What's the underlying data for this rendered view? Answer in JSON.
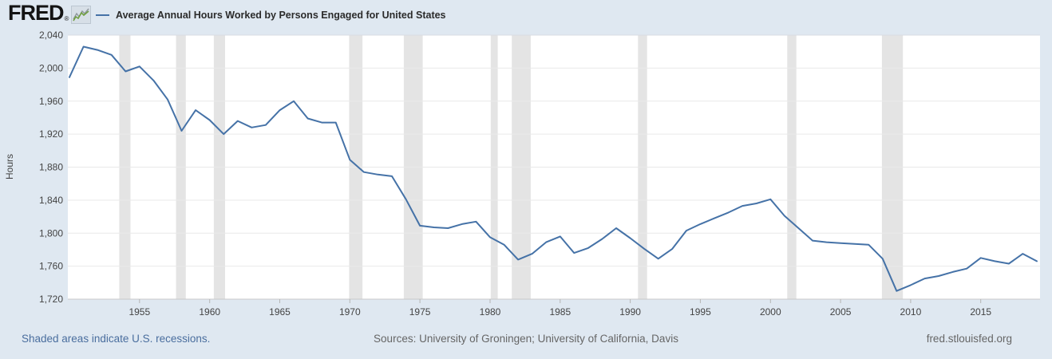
{
  "header": {
    "brand": "FRED",
    "registered_mark": "®",
    "legend_dash": "—",
    "legend_label": "Average Annual Hours Worked by Persons Engaged for United States"
  },
  "colors": {
    "page_background": "#dfe8f1",
    "plot_background": "#ffffff",
    "line_color": "#4572a7",
    "recession_band_color": "#e4e4e4",
    "gridline_color": "#e9e9e9",
    "axis_line_color": "#c9c9c9",
    "tick_label_color": "#434343",
    "link_color": "#4a6e9e",
    "logo_green": "#6f9e3f"
  },
  "chart_data": {
    "type": "line",
    "title": "Average Annual Hours Worked by Persons Engaged for United States",
    "ylabel": "Hours",
    "xlabel": "",
    "grid": "horizontal",
    "legend_position": "top",
    "ylim": [
      1720,
      2040
    ],
    "xlim": [
      1950,
      2019
    ],
    "x": [
      1950,
      1951,
      1952,
      1953,
      1954,
      1955,
      1956,
      1957,
      1958,
      1959,
      1960,
      1961,
      1962,
      1963,
      1964,
      1965,
      1966,
      1967,
      1968,
      1969,
      1970,
      1971,
      1972,
      1973,
      1974,
      1975,
      1976,
      1977,
      1978,
      1979,
      1980,
      1981,
      1982,
      1983,
      1984,
      1985,
      1986,
      1987,
      1988,
      1989,
      1990,
      1991,
      1992,
      1993,
      1994,
      1995,
      1996,
      1997,
      1998,
      1999,
      2000,
      2001,
      2002,
      2003,
      2004,
      2005,
      2006,
      2007,
      2008,
      2009,
      2010,
      2011,
      2012,
      2013,
      2014,
      2015,
      2016,
      2017,
      2018,
      2019
    ],
    "values": [
      1989,
      2026,
      2022,
      2016,
      1996,
      2002,
      1985,
      1962,
      1924,
      1949,
      1937,
      1920,
      1936,
      1928,
      1931,
      1949,
      1960,
      1939,
      1934,
      1934,
      1889,
      1874,
      1871,
      1869,
      1841,
      1809,
      1807,
      1806,
      1811,
      1814,
      1795,
      1786,
      1768,
      1775,
      1789,
      1796,
      1776,
      1782,
      1793,
      1806,
      1794,
      1781,
      1769,
      1781,
      1803,
      1811,
      1818,
      1825,
      1833,
      1836,
      1841,
      1821,
      1806,
      1791,
      1789,
      1788,
      1787,
      1786,
      1769,
      1730,
      1737,
      1745,
      1748,
      1753,
      1757,
      1770,
      1766,
      1763,
      1775,
      1766
    ],
    "yticks": [
      {
        "value": 2040,
        "label": "2,040"
      },
      {
        "value": 2000,
        "label": "2,000"
      },
      {
        "value": 1960,
        "label": "1,960"
      },
      {
        "value": 1920,
        "label": "1,920"
      },
      {
        "value": 1880,
        "label": "1,880"
      },
      {
        "value": 1840,
        "label": "1,840"
      },
      {
        "value": 1800,
        "label": "1,800"
      },
      {
        "value": 1760,
        "label": "1,760"
      },
      {
        "value": 1720,
        "label": "1,720"
      }
    ],
    "xticks": [
      1955,
      1960,
      1965,
      1970,
      1975,
      1980,
      1985,
      1990,
      1995,
      2000,
      2005,
      2010,
      2015
    ],
    "recessions": [
      [
        1953.55,
        1954.35
      ],
      [
        1957.6,
        1958.3
      ],
      [
        1960.3,
        1961.1
      ],
      [
        1969.95,
        1970.9
      ],
      [
        1973.85,
        1975.2
      ],
      [
        1980.05,
        1980.55
      ],
      [
        1981.55,
        1982.9
      ],
      [
        1990.55,
        1991.2
      ],
      [
        2001.2,
        2001.85
      ],
      [
        2007.95,
        2009.45
      ]
    ]
  },
  "footer": {
    "recession_note": "Shaded areas indicate U.S. recessions.",
    "sources": "Sources: University of Groningen; University of California, Davis",
    "site": "fred.stlouisfed.org"
  }
}
